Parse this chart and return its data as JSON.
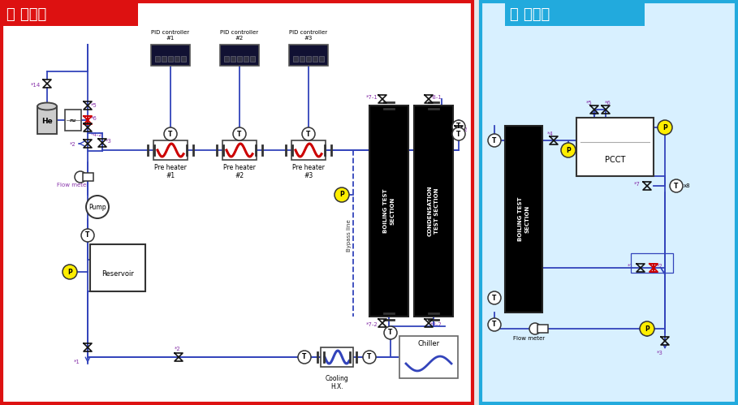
{
  "title_left": "열 공급부",
  "title_right": "열 제거부",
  "border_left": "#dd1111",
  "border_right": "#22aadd",
  "title_bg_left": "#dd1111",
  "title_bg_right": "#22aadd",
  "panel_right_bg": "#d8f0ff",
  "line_color": "#3344bb",
  "label_color": "#8833aa",
  "pid_labels": [
    "PID controller\n#1",
    "PID controller\n#2",
    "PID controller\n#3"
  ],
  "preheater_labels": [
    "Pre heater\n#1",
    "Pre heater\n#2",
    "Pre heater\n#3"
  ],
  "ts_left_1": "BOILING TEST\nSECTION",
  "ts_left_2": "CONDENSATION\nTEST SECTION",
  "ts_right": "BOILING TEST\nSECTION"
}
